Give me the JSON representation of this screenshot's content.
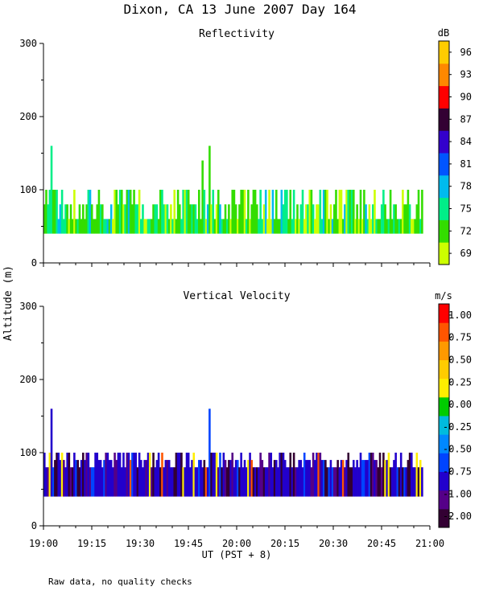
{
  "figure": {
    "title": "Dixon, CA 13 June 2007  Day 164",
    "ylabel": "Altitude (m)",
    "xlabel": "UT  (PST + 8)",
    "footnote": "Raw data, no quality checks",
    "xticks": [
      "19:00",
      "19:15",
      "19:30",
      "19:45",
      "20:00",
      "20:15",
      "20:30",
      "20:45",
      "21:00"
    ]
  },
  "colors": {
    "reflectivity_scale": [
      "#ccff00",
      "#33dd00",
      "#00ee88",
      "#00bbee",
      "#0055ff",
      "#3300cc",
      "#330033",
      "#ff0000",
      "#ff8800",
      "#ffcc00"
    ],
    "velocity_scale": [
      "#330033",
      "#550088",
      "#2200cc",
      "#0044ff",
      "#0088ff",
      "#00bbdd",
      "#00cc00",
      "#ffee00",
      "#ffcc00",
      "#ff9900",
      "#ff5500",
      "#ff0000"
    ]
  },
  "chart_data": [
    {
      "type": "heatmap",
      "title": "Reflectivity",
      "x_range": [
        "19:00",
        "21:00"
      ],
      "ylim": [
        0,
        300
      ],
      "yticks": [
        0,
        100,
        200,
        300
      ],
      "colorbar": {
        "unit": "dB",
        "labels": [
          "69",
          "72",
          "75",
          "78",
          "81",
          "84",
          "87",
          "90",
          "93",
          "96"
        ]
      },
      "echo_layer": {
        "base_m": 40,
        "typical_top_m": [
          60,
          100
        ],
        "max_top_m": 160
      },
      "peaks": [
        {
          "time": "19:02",
          "top_m": 160
        },
        {
          "time": "19:51",
          "top_m": 160
        },
        {
          "time": "19:49",
          "top_m": 140
        }
      ]
    },
    {
      "type": "heatmap",
      "title": "Vertical Velocity",
      "x_range": [
        "19:00",
        "21:00"
      ],
      "ylim": [
        0,
        300
      ],
      "yticks": [
        0,
        100,
        200,
        300
      ],
      "colorbar": {
        "unit": "m/s",
        "labels": [
          "-2.00",
          "-1.00",
          "-0.75",
          "-0.50",
          "-0.25",
          "0.00",
          "0.25",
          "0.50",
          "0.75",
          "1.00"
        ]
      },
      "echo_layer": {
        "base_m": 40,
        "typical_top_m": [
          80,
          100
        ],
        "max_top_m": 160
      },
      "peaks": [
        {
          "time": "19:02",
          "top_m": 160
        },
        {
          "time": "19:51",
          "top_m": 160
        }
      ]
    }
  ]
}
